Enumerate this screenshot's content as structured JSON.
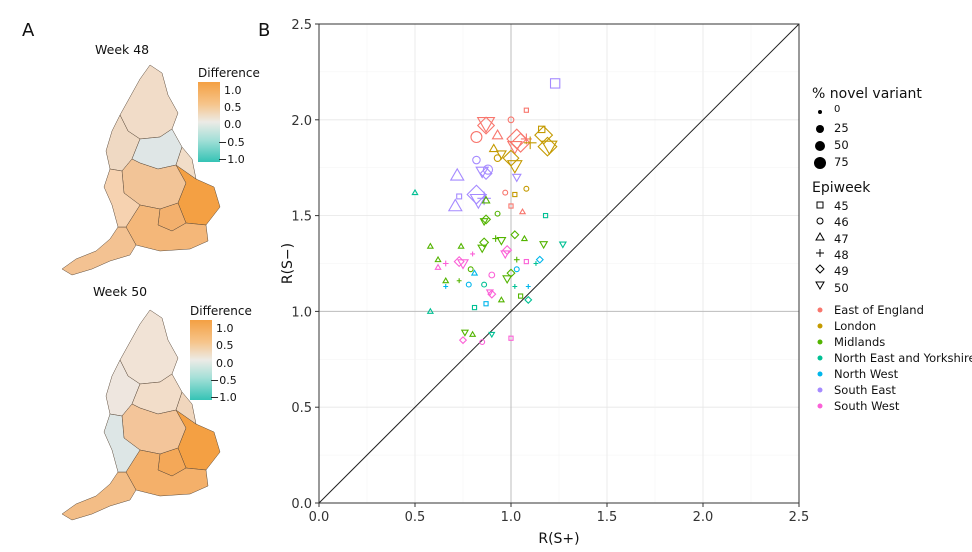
{
  "panels": {
    "a_label": "A",
    "b_label": "B"
  },
  "maps": [
    {
      "title": "Week 48",
      "legend_title": "Difference",
      "ticks": [
        "1.0",
        "0.5",
        "0.0",
        "−0.5",
        "−1.0"
      ]
    },
    {
      "title": "Week 50",
      "legend_title": "Difference",
      "ticks": [
        "1.0",
        "0.5",
        "0.0",
        "−0.5",
        "−1.0"
      ]
    }
  ],
  "colors": {
    "East of England": "#f8766d",
    "London": "#c49a00",
    "Midlands": "#53b400",
    "North East and Yorkshire": "#00c094",
    "North West": "#00b6eb",
    "South East": "#a58aff",
    "South West": "#fb61d7",
    "map_high": "#f4a043",
    "map_low": "#35c3b5"
  },
  "legend": {
    "size_title": "% novel variant",
    "size_items": [
      "0",
      "25",
      "50",
      "75"
    ],
    "shape_title": "Epiweek",
    "shape_items": [
      {
        "label": "45",
        "shape": "square"
      },
      {
        "label": "46",
        "shape": "circle"
      },
      {
        "label": "47",
        "shape": "triangle-up"
      },
      {
        "label": "48",
        "shape": "plus"
      },
      {
        "label": "49",
        "shape": "diamond"
      },
      {
        "label": "50",
        "shape": "triangle-down"
      }
    ],
    "region_items": [
      "East of England",
      "London",
      "Midlands",
      "North East and Yorkshire",
      "North West",
      "South East",
      "South West"
    ]
  },
  "chart_data": {
    "type": "scatter",
    "title": "",
    "xlabel": "R(S+)",
    "ylabel": "R(S−)",
    "xlim": [
      0,
      2.5
    ],
    "ylim": [
      0,
      2.5
    ],
    "xticks": [
      "0.0",
      "0.5",
      "1.0",
      "1.5",
      "2.0",
      "2.5"
    ],
    "yticks": [
      "0.0",
      "0.5",
      "1.0",
      "1.5",
      "2.0",
      "2.5"
    ],
    "reference_lines": [
      "y = x",
      "x = 1",
      "y = 1"
    ],
    "grid": true,
    "points": [
      {
        "region": "South East",
        "week": 45,
        "x": 1.23,
        "y": 2.19,
        "pct": 40
      },
      {
        "region": "East of England",
        "week": 45,
        "x": 1.08,
        "y": 2.05,
        "pct": 5
      },
      {
        "region": "East of England",
        "week": 46,
        "x": 1.0,
        "y": 2.0,
        "pct": 10
      },
      {
        "region": "East of England",
        "week": 49,
        "x": 0.87,
        "y": 1.97,
        "pct": 60
      },
      {
        "region": "East of England",
        "week": 50,
        "x": 0.87,
        "y": 1.98,
        "pct": 65
      },
      {
        "region": "East of England",
        "week": 47,
        "x": 0.93,
        "y": 1.92,
        "pct": 30
      },
      {
        "region": "East of England",
        "week": 49,
        "x": 1.03,
        "y": 1.9,
        "pct": 75
      },
      {
        "region": "East of England",
        "week": 49,
        "x": 1.05,
        "y": 1.88,
        "pct": 70
      },
      {
        "region": "East of England",
        "week": 48,
        "x": 1.08,
        "y": 1.9,
        "pct": 40
      },
      {
        "region": "East of England",
        "week": 50,
        "x": 1.02,
        "y": 1.86,
        "pct": 50
      },
      {
        "region": "East of England",
        "week": 46,
        "x": 0.82,
        "y": 1.91,
        "pct": 40
      },
      {
        "region": "London",
        "week": 45,
        "x": 1.16,
        "y": 1.95,
        "pct": 20
      },
      {
        "region": "London",
        "week": 49,
        "x": 1.17,
        "y": 1.92,
        "pct": 65
      },
      {
        "region": "London",
        "week": 50,
        "x": 1.2,
        "y": 1.86,
        "pct": 55
      },
      {
        "region": "London",
        "week": 49,
        "x": 1.19,
        "y": 1.86,
        "pct": 70
      },
      {
        "region": "London",
        "week": 48,
        "x": 1.1,
        "y": 1.88,
        "pct": 50
      },
      {
        "region": "London",
        "week": 47,
        "x": 0.91,
        "y": 1.85,
        "pct": 20
      },
      {
        "region": "London",
        "week": 49,
        "x": 1.0,
        "y": 1.8,
        "pct": 55
      },
      {
        "region": "London",
        "week": 50,
        "x": 1.02,
        "y": 1.76,
        "pct": 50
      },
      {
        "region": "London",
        "week": 46,
        "x": 0.93,
        "y": 1.8,
        "pct": 15
      },
      {
        "region": "London",
        "week": 50,
        "x": 0.95,
        "y": 1.82,
        "pct": 25
      },
      {
        "region": "South East",
        "week": 46,
        "x": 0.82,
        "y": 1.79,
        "pct": 20
      },
      {
        "region": "South East",
        "week": 47,
        "x": 0.72,
        "y": 1.71,
        "pct": 45
      },
      {
        "region": "South East",
        "week": 49,
        "x": 0.87,
        "y": 1.72,
        "pct": 35
      },
      {
        "region": "South East",
        "week": 50,
        "x": 0.85,
        "y": 1.73,
        "pct": 40
      },
      {
        "region": "South East",
        "week": 46,
        "x": 0.88,
        "y": 1.74,
        "pct": 30
      },
      {
        "region": "South East",
        "week": 50,
        "x": 1.03,
        "y": 1.7,
        "pct": 20
      },
      {
        "region": "South East",
        "week": 49,
        "x": 0.82,
        "y": 1.61,
        "pct": 70
      },
      {
        "region": "South East",
        "week": 50,
        "x": 0.83,
        "y": 1.58,
        "pct": 60
      },
      {
        "region": "South East",
        "week": 48,
        "x": 0.86,
        "y": 1.59,
        "pct": 55
      },
      {
        "region": "South East",
        "week": 47,
        "x": 0.71,
        "y": 1.55,
        "pct": 45
      },
      {
        "region": "South East",
        "week": 45,
        "x": 0.73,
        "y": 1.6,
        "pct": 10
      },
      {
        "region": "Midlands",
        "week": 47,
        "x": 0.87,
        "y": 1.58,
        "pct": 15
      },
      {
        "region": "Midlands",
        "week": 49,
        "x": 0.87,
        "y": 1.48,
        "pct": 20
      },
      {
        "region": "Midlands",
        "week": 50,
        "x": 0.86,
        "y": 1.47,
        "pct": 15
      },
      {
        "region": "Midlands",
        "week": 46,
        "x": 0.93,
        "y": 1.51,
        "pct": 5
      },
      {
        "region": "East of England",
        "week": 45,
        "x": 1.0,
        "y": 1.55,
        "pct": 5
      },
      {
        "region": "East of England",
        "week": 46,
        "x": 0.97,
        "y": 1.62,
        "pct": 5
      },
      {
        "region": "East of England",
        "week": 47,
        "x": 1.06,
        "y": 1.52,
        "pct": 5
      },
      {
        "region": "London",
        "week": 45,
        "x": 1.02,
        "y": 1.61,
        "pct": 5
      },
      {
        "region": "London",
        "week": 46,
        "x": 1.08,
        "y": 1.64,
        "pct": 5
      },
      {
        "region": "North East and Yorkshire",
        "week": 47,
        "x": 0.5,
        "y": 1.62,
        "pct": 5
      },
      {
        "region": "North East and Yorkshire",
        "week": 45,
        "x": 1.18,
        "y": 1.5,
        "pct": 5
      },
      {
        "region": "Midlands",
        "week": 47,
        "x": 0.58,
        "y": 1.34,
        "pct": 5
      },
      {
        "region": "Midlands",
        "week": 47,
        "x": 0.62,
        "y": 1.27,
        "pct": 5
      },
      {
        "region": "Midlands",
        "week": 47,
        "x": 0.74,
        "y": 1.34,
        "pct": 5
      },
      {
        "region": "Midlands",
        "week": 50,
        "x": 0.85,
        "y": 1.33,
        "pct": 20
      },
      {
        "region": "Midlands",
        "week": 49,
        "x": 0.86,
        "y": 1.36,
        "pct": 20
      },
      {
        "region": "Midlands",
        "week": 48,
        "x": 0.92,
        "y": 1.38,
        "pct": 15
      },
      {
        "region": "Midlands",
        "week": 50,
        "x": 0.95,
        "y": 1.37,
        "pct": 20
      },
      {
        "region": "Midlands",
        "week": 49,
        "x": 1.02,
        "y": 1.4,
        "pct": 15
      },
      {
        "region": "Midlands",
        "week": 47,
        "x": 1.07,
        "y": 1.38,
        "pct": 5
      },
      {
        "region": "Midlands",
        "week": 50,
        "x": 1.17,
        "y": 1.35,
        "pct": 15
      },
      {
        "region": "Midlands",
        "week": 48,
        "x": 1.03,
        "y": 1.27,
        "pct": 10
      },
      {
        "region": "Midlands",
        "week": 49,
        "x": 1.0,
        "y": 1.2,
        "pct": 15
      },
      {
        "region": "Midlands",
        "week": 50,
        "x": 0.98,
        "y": 1.17,
        "pct": 20
      },
      {
        "region": "Midlands",
        "week": 46,
        "x": 0.79,
        "y": 1.22,
        "pct": 5
      },
      {
        "region": "Midlands",
        "week": 47,
        "x": 0.66,
        "y": 1.16,
        "pct": 5
      },
      {
        "region": "Midlands",
        "week": 48,
        "x": 0.73,
        "y": 1.16,
        "pct": 5
      },
      {
        "region": "Midlands",
        "week": 47,
        "x": 0.95,
        "y": 1.06,
        "pct": 5
      },
      {
        "region": "Midlands",
        "week": 50,
        "x": 0.76,
        "y": 0.89,
        "pct": 10
      },
      {
        "region": "Midlands",
        "week": 47,
        "x": 0.8,
        "y": 0.88,
        "pct": 5
      },
      {
        "region": "Midlands",
        "week": 45,
        "x": 1.05,
        "y": 1.08,
        "pct": 5
      },
      {
        "region": "South West",
        "week": 49,
        "x": 0.73,
        "y": 1.26,
        "pct": 25
      },
      {
        "region": "South West",
        "week": 50,
        "x": 0.75,
        "y": 1.25,
        "pct": 30
      },
      {
        "region": "South West",
        "week": 48,
        "x": 0.66,
        "y": 1.25,
        "pct": 10
      },
      {
        "region": "South West",
        "week": 47,
        "x": 0.62,
        "y": 1.23,
        "pct": 5
      },
      {
        "region": "South West",
        "week": 49,
        "x": 0.98,
        "y": 1.32,
        "pct": 20
      },
      {
        "region": "South West",
        "week": 50,
        "x": 0.97,
        "y": 1.3,
        "pct": 20
      },
      {
        "region": "South West",
        "week": 46,
        "x": 0.9,
        "y": 1.19,
        "pct": 10
      },
      {
        "region": "South West",
        "week": 45,
        "x": 1.08,
        "y": 1.26,
        "pct": 5
      },
      {
        "region": "South West",
        "week": 48,
        "x": 0.8,
        "y": 1.3,
        "pct": 5
      },
      {
        "region": "South West",
        "week": 49,
        "x": 0.9,
        "y": 1.09,
        "pct": 15
      },
      {
        "region": "South West",
        "week": 50,
        "x": 0.89,
        "y": 1.1,
        "pct": 10
      },
      {
        "region": "South West",
        "week": 45,
        "x": 1.0,
        "y": 0.86,
        "pct": 5
      },
      {
        "region": "South West",
        "week": 49,
        "x": 0.75,
        "y": 0.85,
        "pct": 10
      },
      {
        "region": "South West",
        "week": 46,
        "x": 0.85,
        "y": 0.84,
        "pct": 5
      },
      {
        "region": "North East and Yorkshire",
        "week": 50,
        "x": 1.27,
        "y": 1.35,
        "pct": 10
      },
      {
        "region": "North East and Yorkshire",
        "week": 48,
        "x": 1.13,
        "y": 1.25,
        "pct": 5
      },
      {
        "region": "North East and Yorkshire",
        "week": 49,
        "x": 1.09,
        "y": 1.06,
        "pct": 10
      },
      {
        "region": "North East and Yorkshire",
        "week": 48,
        "x": 1.02,
        "y": 1.13,
        "pct": 5
      },
      {
        "region": "North East and Yorkshire",
        "week": 46,
        "x": 0.86,
        "y": 1.14,
        "pct": 5
      },
      {
        "region": "North East and Yorkshire",
        "week": 47,
        "x": 0.58,
        "y": 1.0,
        "pct": 5
      },
      {
        "region": "North East and Yorkshire",
        "week": 50,
        "x": 0.9,
        "y": 0.88,
        "pct": 5
      },
      {
        "region": "North East and Yorkshire",
        "week": 45,
        "x": 0.81,
        "y": 1.02,
        "pct": 5
      },
      {
        "region": "North West",
        "week": 48,
        "x": 0.66,
        "y": 1.13,
        "pct": 5
      },
      {
        "region": "North West",
        "week": 49,
        "x": 1.15,
        "y": 1.27,
        "pct": 10
      },
      {
        "region": "North West",
        "week": 46,
        "x": 1.03,
        "y": 1.22,
        "pct": 5
      },
      {
        "region": "North West",
        "week": 48,
        "x": 1.09,
        "y": 1.13,
        "pct": 5
      },
      {
        "region": "North West",
        "week": 45,
        "x": 0.87,
        "y": 1.04,
        "pct": 5
      },
      {
        "region": "North West",
        "week": 47,
        "x": 0.81,
        "y": 1.2,
        "pct": 5
      },
      {
        "region": "North West",
        "week": 46,
        "x": 0.78,
        "y": 1.14,
        "pct": 5
      }
    ]
  }
}
